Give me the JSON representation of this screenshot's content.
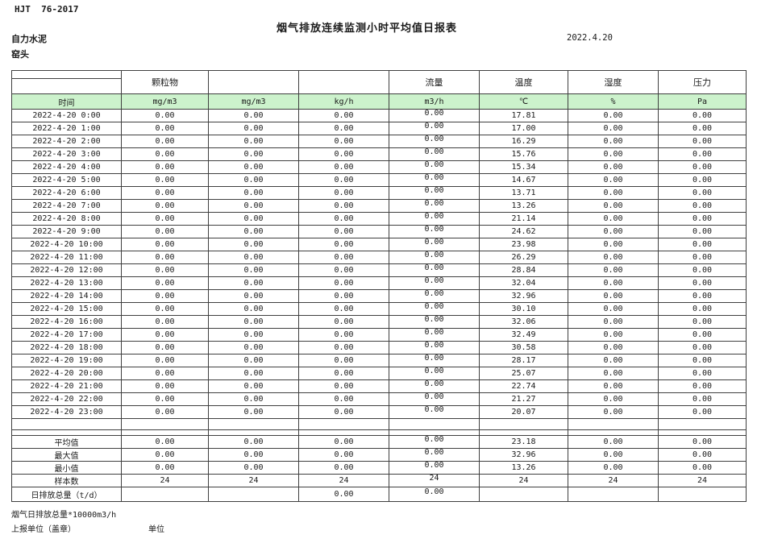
{
  "page": {
    "doc_code": "HJT  76-2017",
    "title": "烟气排放连续监测小时平均值日报表",
    "date": "2022.4.20",
    "company": "自力水泥",
    "location": "窑头"
  },
  "table": {
    "pollutant_headers": [
      "颗粒物",
      "",
      "",
      "流量",
      "温度",
      "湿度",
      "压力"
    ],
    "time_header": "时间",
    "unit_headers": [
      "mg/m3",
      "mg/m3",
      "kg/h",
      "m3/h",
      "℃",
      "%",
      "Pa"
    ],
    "hours": [
      {
        "time": "2022-4-20 0:00",
        "values": [
          "0.00",
          "0.00",
          "0.00",
          "0.00",
          "17.81",
          "0.00",
          "0.00"
        ]
      },
      {
        "time": "2022-4-20 1:00",
        "values": [
          "0.00",
          "0.00",
          "0.00",
          "0.00",
          "17.00",
          "0.00",
          "0.00"
        ]
      },
      {
        "time": "2022-4-20 2:00",
        "values": [
          "0.00",
          "0.00",
          "0.00",
          "0.00",
          "16.29",
          "0.00",
          "0.00"
        ]
      },
      {
        "time": "2022-4-20 3:00",
        "values": [
          "0.00",
          "0.00",
          "0.00",
          "0.00",
          "15.76",
          "0.00",
          "0.00"
        ]
      },
      {
        "time": "2022-4-20 4:00",
        "values": [
          "0.00",
          "0.00",
          "0.00",
          "0.00",
          "15.34",
          "0.00",
          "0.00"
        ]
      },
      {
        "time": "2022-4-20 5:00",
        "values": [
          "0.00",
          "0.00",
          "0.00",
          "0.00",
          "14.67",
          "0.00",
          "0.00"
        ]
      },
      {
        "time": "2022-4-20 6:00",
        "values": [
          "0.00",
          "0.00",
          "0.00",
          "0.00",
          "13.71",
          "0.00",
          "0.00"
        ]
      },
      {
        "time": "2022-4-20 7:00",
        "values": [
          "0.00",
          "0.00",
          "0.00",
          "0.00",
          "13.26",
          "0.00",
          "0.00"
        ]
      },
      {
        "time": "2022-4-20 8:00",
        "values": [
          "0.00",
          "0.00",
          "0.00",
          "0.00",
          "21.14",
          "0.00",
          "0.00"
        ]
      },
      {
        "time": "2022-4-20 9:00",
        "values": [
          "0.00",
          "0.00",
          "0.00",
          "0.00",
          "24.62",
          "0.00",
          "0.00"
        ]
      },
      {
        "time": "2022-4-20 10:00",
        "values": [
          "0.00",
          "0.00",
          "0.00",
          "0.00",
          "23.98",
          "0.00",
          "0.00"
        ]
      },
      {
        "time": "2022-4-20 11:00",
        "values": [
          "0.00",
          "0.00",
          "0.00",
          "0.00",
          "26.29",
          "0.00",
          "0.00"
        ]
      },
      {
        "time": "2022-4-20 12:00",
        "values": [
          "0.00",
          "0.00",
          "0.00",
          "0.00",
          "28.84",
          "0.00",
          "0.00"
        ]
      },
      {
        "time": "2022-4-20 13:00",
        "values": [
          "0.00",
          "0.00",
          "0.00",
          "0.00",
          "32.04",
          "0.00",
          "0.00"
        ]
      },
      {
        "time": "2022-4-20 14:00",
        "values": [
          "0.00",
          "0.00",
          "0.00",
          "0.00",
          "32.96",
          "0.00",
          "0.00"
        ]
      },
      {
        "time": "2022-4-20 15:00",
        "values": [
          "0.00",
          "0.00",
          "0.00",
          "0.00",
          "30.10",
          "0.00",
          "0.00"
        ]
      },
      {
        "time": "2022-4-20 16:00",
        "values": [
          "0.00",
          "0.00",
          "0.00",
          "0.00",
          "32.06",
          "0.00",
          "0.00"
        ]
      },
      {
        "time": "2022-4-20 17:00",
        "values": [
          "0.00",
          "0.00",
          "0.00",
          "0.00",
          "32.49",
          "0.00",
          "0.00"
        ]
      },
      {
        "time": "2022-4-20 18:00",
        "values": [
          "0.00",
          "0.00",
          "0.00",
          "0.00",
          "30.58",
          "0.00",
          "0.00"
        ]
      },
      {
        "time": "2022-4-20 19:00",
        "values": [
          "0.00",
          "0.00",
          "0.00",
          "0.00",
          "28.17",
          "0.00",
          "0.00"
        ]
      },
      {
        "time": "2022-4-20 20:00",
        "values": [
          "0.00",
          "0.00",
          "0.00",
          "0.00",
          "25.07",
          "0.00",
          "0.00"
        ]
      },
      {
        "time": "2022-4-20 21:00",
        "values": [
          "0.00",
          "0.00",
          "0.00",
          "0.00",
          "22.74",
          "0.00",
          "0.00"
        ]
      },
      {
        "time": "2022-4-20 22:00",
        "values": [
          "0.00",
          "0.00",
          "0.00",
          "0.00",
          "21.27",
          "0.00",
          "0.00"
        ]
      },
      {
        "time": "2022-4-20 23:00",
        "values": [
          "0.00",
          "0.00",
          "0.00",
          "0.00",
          "20.07",
          "0.00",
          "0.00"
        ]
      }
    ],
    "summary": [
      {
        "label": "平均值",
        "values": [
          "0.00",
          "0.00",
          "0.00",
          "0.00",
          "23.18",
          "0.00",
          "0.00"
        ]
      },
      {
        "label": "最大值",
        "values": [
          "0.00",
          "0.00",
          "0.00",
          "0.00",
          "32.96",
          "0.00",
          "0.00"
        ]
      },
      {
        "label": "最小值",
        "values": [
          "0.00",
          "0.00",
          "0.00",
          "0.00",
          "13.26",
          "0.00",
          "0.00"
        ]
      },
      {
        "label": "样本数",
        "values": [
          "24",
          "24",
          "24",
          "24",
          "24",
          "24",
          "24"
        ]
      },
      {
        "label": "日排放总量（t/d）",
        "values": [
          "",
          "",
          "0.00",
          "0.00",
          "",
          "",
          ""
        ]
      }
    ]
  },
  "footer": {
    "note": "烟气日排放总量*10000m3/h",
    "report_unit_label": "上报单位（盖章）",
    "unit_label": "单位"
  },
  "colors": {
    "header_green": "#ccf2cc",
    "grid_line": "#3f3f3f"
  }
}
